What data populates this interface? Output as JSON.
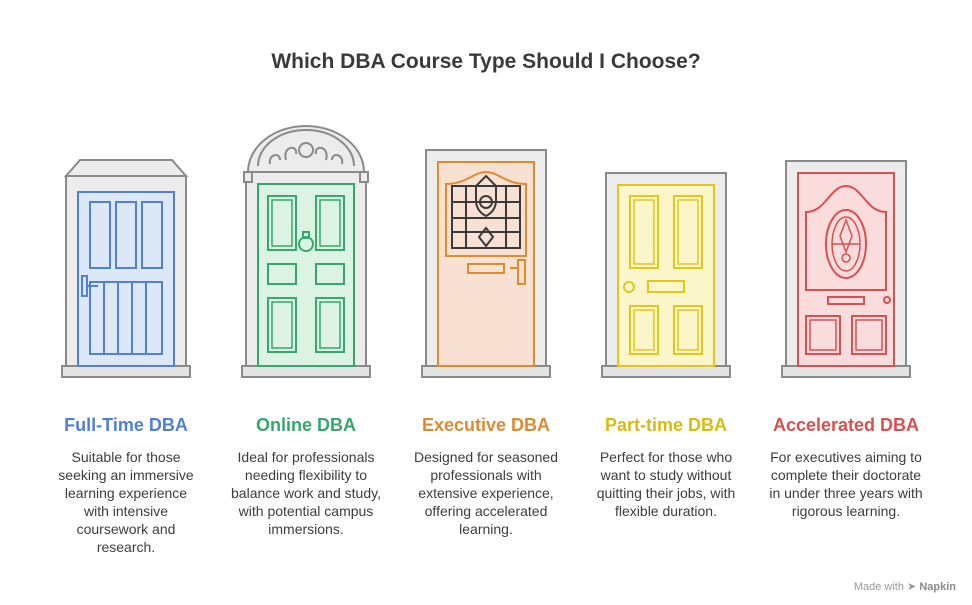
{
  "title": "Which DBA Course Type Should I Choose?",
  "colors": {
    "full_time": "#4f7fd6",
    "online": "#35a86b",
    "executive": "#e08a2e",
    "part_time": "#e3c51c",
    "accelerated": "#dc4f4f"
  },
  "options": [
    {
      "name": "Full-Time DBA",
      "description": "Suitable for those seeking an immersive learning experience with intensive coursework and research."
    },
    {
      "name": "Online DBA",
      "description": "Ideal for professionals needing flexibility to balance work and study, with potential campus immersions."
    },
    {
      "name": "Executive DBA",
      "description": "Designed for seasoned professionals with extensive experience, offering accelerated learning."
    },
    {
      "name": "Part-time DBA",
      "description": "Perfect for those who want to study without quitting their jobs, with flexible duration."
    },
    {
      "name": "Accelerated DBA",
      "description": "For executives aiming to complete their doctorate in under three years with rigorous learning."
    }
  ],
  "footer": {
    "made_with": "Made with",
    "brand": "Napkin"
  }
}
